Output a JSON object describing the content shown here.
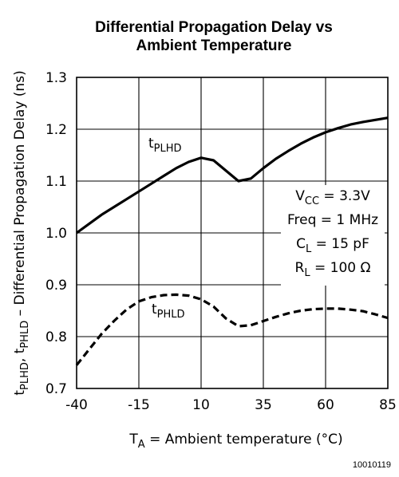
{
  "chart_data": {
    "type": "line",
    "title_line1": "Differential Propagation Delay vs",
    "title_line2": "Ambient Temperature",
    "xlabel": {
      "base": "T",
      "sub": "A",
      "rest": " = Ambient temperature (°C)"
    },
    "ylabel": {
      "p1": "t",
      "s1": "PLHD",
      "p2": ", t",
      "s2": "PHLD",
      "p3": " – Differential Propagation Delay (ns)"
    },
    "xlim": [
      -40,
      85
    ],
    "ylim": [
      0.7,
      1.3
    ],
    "xticks": [
      -40,
      -15,
      10,
      35,
      60,
      85
    ],
    "yticks": [
      0.7,
      0.8,
      0.9,
      1.0,
      1.1,
      1.2,
      1.3
    ],
    "x_tick_labels": [
      "-40",
      "-15",
      "10",
      "35",
      "60",
      "85"
    ],
    "y_tick_labels": [
      "0.7",
      "0.8",
      "0.9",
      "1.0",
      "1.1",
      "1.2",
      "1.3"
    ],
    "grid": true,
    "series": [
      {
        "name": "tPLHD",
        "label_base": "t",
        "label_sub": "PLHD",
        "style": "solid",
        "x": [
          -40,
          -30,
          -20,
          -10,
          -5,
          0,
          5,
          10,
          15,
          20,
          25,
          30,
          35,
          40,
          45,
          50,
          55,
          60,
          65,
          70,
          75,
          80,
          85
        ],
        "y": [
          1.0,
          1.035,
          1.065,
          1.095,
          1.11,
          1.125,
          1.137,
          1.145,
          1.14,
          1.12,
          1.1,
          1.105,
          1.125,
          1.143,
          1.158,
          1.172,
          1.184,
          1.194,
          1.202,
          1.209,
          1.214,
          1.218,
          1.222
        ]
      },
      {
        "name": "tPHLD",
        "label_base": "t",
        "label_sub": "PHLD",
        "style": "dashed",
        "x": [
          -40,
          -35,
          -30,
          -25,
          -20,
          -15,
          -10,
          -5,
          0,
          5,
          10,
          15,
          20,
          25,
          30,
          35,
          40,
          45,
          50,
          55,
          60,
          65,
          70,
          75,
          80,
          85
        ],
        "y": [
          0.745,
          0.775,
          0.805,
          0.83,
          0.852,
          0.868,
          0.876,
          0.88,
          0.881,
          0.879,
          0.872,
          0.858,
          0.835,
          0.82,
          0.822,
          0.83,
          0.838,
          0.845,
          0.85,
          0.853,
          0.854,
          0.854,
          0.852,
          0.849,
          0.843,
          0.836
        ]
      }
    ],
    "annotation": [
      {
        "base": "V",
        "sub": "CC",
        "rest": " = 3.3V"
      },
      {
        "base": "Freq = 1 MHz",
        "sub": "",
        "rest": ""
      },
      {
        "base": "C",
        "sub": "L",
        "rest": " = 15 pF"
      },
      {
        "base": "R",
        "sub": "L",
        "rest": " = 100 Ω"
      }
    ],
    "figure_id": "10010119"
  }
}
